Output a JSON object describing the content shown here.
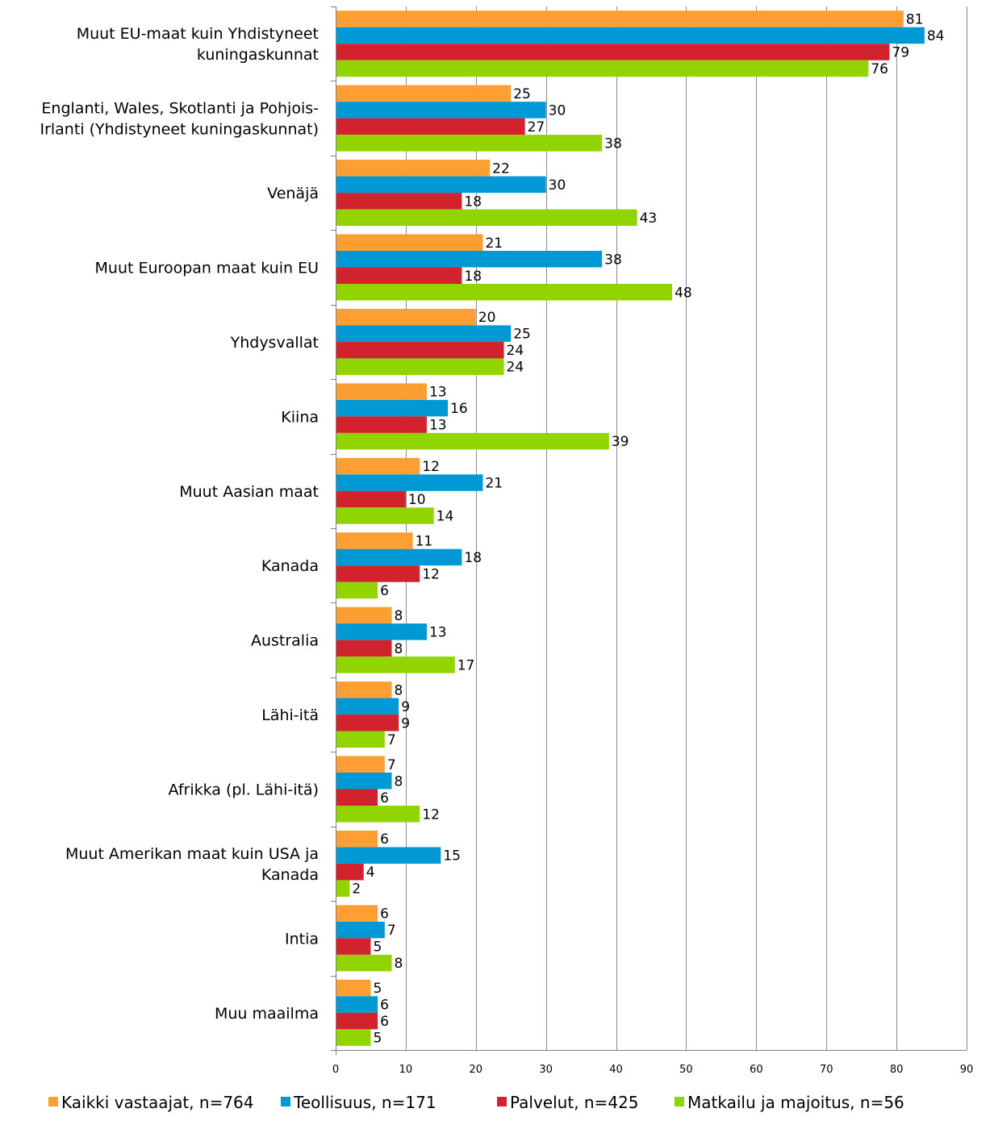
{
  "chart_data": {
    "type": "bar",
    "orientation": "horizontal",
    "title": "",
    "xlabel": "",
    "ylabel": "",
    "xlim": [
      0,
      90
    ],
    "x_ticks": [
      0,
      10,
      20,
      30,
      40,
      50,
      60,
      70,
      80,
      90
    ],
    "grid": true,
    "legend_position": "bottom",
    "categories": [
      "Muut EU-maat  kuin Yhdistyneet kuningaskunnat",
      "Englanti, Wales, Skotlanti ja Pohjois-Irlanti (Yhdistyneet kuningaskunnat)",
      "Venäjä",
      "Muut Euroopan maat kuin EU",
      "Yhdysvallat",
      "Kiina",
      "Muut Aasian maat",
      "Kanada",
      "Australia",
      "Lähi-itä",
      "Afrikka (pl. Lähi-itä)",
      "Muut Amerikan maat kuin USA ja Kanada",
      "Intia",
      "Muu maailma"
    ],
    "category_lines": [
      [
        "Muut EU-maat  kuin Yhdistyneet",
        "kuningaskunnat"
      ],
      [
        "Englanti, Wales, Skotlanti ja Pohjois-",
        "Irlanti (Yhdistyneet kuningaskunnat)"
      ],
      [
        "Venäjä"
      ],
      [
        "Muut Euroopan maat kuin EU"
      ],
      [
        "Yhdysvallat"
      ],
      [
        "Kiina"
      ],
      [
        "Muut Aasian maat"
      ],
      [
        "Kanada"
      ],
      [
        "Australia"
      ],
      [
        "Lähi-itä"
      ],
      [
        "Afrikka (pl. Lähi-itä)"
      ],
      [
        "Muut Amerikan maat kuin USA ja",
        "Kanada"
      ],
      [
        "Intia"
      ],
      [
        "Muu maailma"
      ]
    ],
    "series": [
      {
        "name": "Kaikki vastaajat, n=764",
        "color": "#ff9f33",
        "values": [
          81,
          25,
          22,
          21,
          20,
          13,
          12,
          11,
          8,
          8,
          7,
          6,
          6,
          5
        ]
      },
      {
        "name": "Teollisuus, n=171",
        "color": "#0099d6",
        "values": [
          84,
          30,
          30,
          38,
          25,
          16,
          21,
          18,
          13,
          9,
          8,
          15,
          7,
          6
        ]
      },
      {
        "name": "Palvelut, n=425",
        "color": "#d2222d",
        "values": [
          79,
          27,
          18,
          18,
          24,
          13,
          10,
          12,
          8,
          9,
          6,
          4,
          5,
          6
        ]
      },
      {
        "name": "Matkailu ja majoitus, n=56",
        "color": "#92d400",
        "values": [
          76,
          38,
          43,
          48,
          24,
          39,
          14,
          6,
          17,
          7,
          12,
          2,
          8,
          5
        ]
      }
    ]
  }
}
